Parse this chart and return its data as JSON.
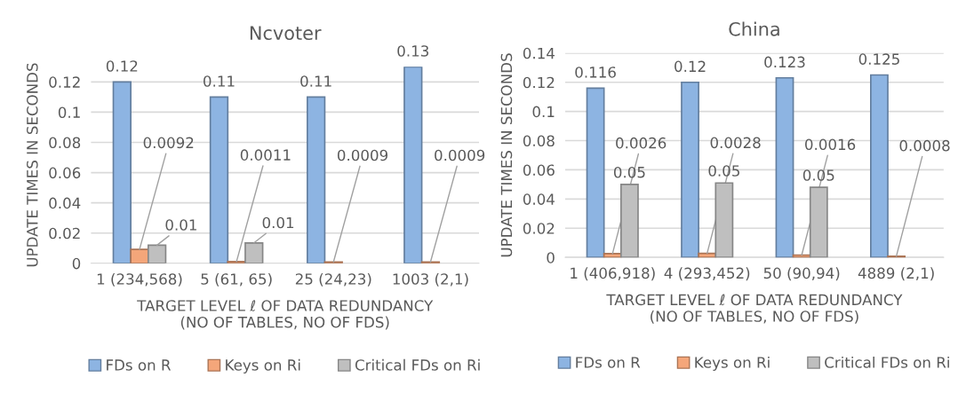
{
  "chart_data": [
    {
      "type": "bar",
      "title": "Ncvoter",
      "xlabel": "TARGET LEVEL ℓ OF DATA REDUNDANCY\n(NO OF TABLES, NO OF FDS)",
      "ylabel": "UPDATE TIMES IN SECONDS",
      "categories": [
        "1 (234,568)",
        "5 (61, 65)",
        "25 (24,23)",
        "1003 (2,1)"
      ],
      "series": [
        {
          "name": "FDs on R",
          "color": "#8db4e2",
          "values": [
            0.12,
            0.11,
            0.11,
            0.13
          ],
          "value_labels": [
            "0.12",
            "0.11",
            "0.11",
            "0.13"
          ]
        },
        {
          "name": "Keys on Ri",
          "color": "#f4a67a",
          "values": [
            0.0092,
            0.0011,
            0.0009,
            0.0009
          ],
          "value_labels": [
            "0.0092",
            "0.0011",
            "0.0009",
            "0.0009"
          ]
        },
        {
          "name": "Critical FDs on Ri",
          "color": "#bfbfbf",
          "values": [
            0.012,
            0.0135,
            null,
            null
          ],
          "value_labels": [
            "0.01",
            "0.01",
            null,
            null
          ]
        }
      ],
      "ylim": [
        0,
        0.13
      ],
      "yticks": [
        0,
        0.02,
        0.04,
        0.06,
        0.08,
        0.1,
        0.12
      ],
      "grid": "y",
      "legend": "bottom"
    },
    {
      "type": "bar",
      "title": "China",
      "xlabel": "TARGET LEVEL ℓ OF DATA REDUNDANCY\n(NO OF TABLES, NO OF FDS)",
      "ylabel": "UPDATE TIMES IN SECONDS",
      "categories": [
        "1 (406,918)",
        "4 (293,452)",
        "50 (90,94)",
        "4889 (2,1)"
      ],
      "series": [
        {
          "name": "FDs on R",
          "color": "#8db4e2",
          "values": [
            0.116,
            0.12,
            0.123,
            0.125
          ],
          "value_labels": [
            "0.116",
            "0.12",
            "0.123",
            "0.125"
          ]
        },
        {
          "name": "Keys on Ri",
          "color": "#f4a67a",
          "values": [
            0.0026,
            0.0028,
            0.0016,
            0.0008
          ],
          "value_labels": [
            "0.0026",
            "0.0028",
            "0.0016",
            "0.0008"
          ]
        },
        {
          "name": "Critical FDs on Ri",
          "color": "#bfbfbf",
          "values": [
            0.05,
            0.051,
            0.048,
            null
          ],
          "value_labels": [
            "0.05",
            "0.05",
            "0.05",
            null
          ]
        }
      ],
      "ylim": [
        0,
        0.14
      ],
      "yticks": [
        0,
        0.02,
        0.04,
        0.06,
        0.08,
        0.1,
        0.12,
        0.14
      ],
      "grid": "y",
      "legend": "bottom"
    }
  ]
}
